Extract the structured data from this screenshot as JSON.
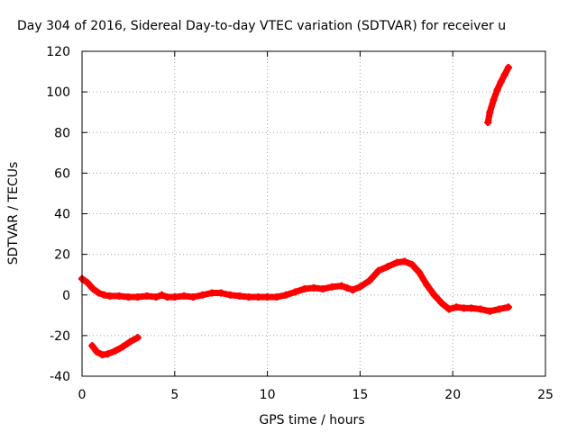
{
  "chart_data": {
    "type": "scatter",
    "title": "Day 304 of 2016, Sidereal Day-to-day VTEC variation (SDTVAR) for receiver u",
    "xlabel": "GPS time / hours",
    "ylabel": "SDTVAR / TECUs",
    "xlim": [
      0,
      25
    ],
    "ylim": [
      -40,
      120
    ],
    "x_ticks": [
      0,
      5,
      10,
      15,
      20,
      25
    ],
    "y_ticks": [
      -40,
      -20,
      0,
      20,
      40,
      60,
      80,
      100,
      120
    ],
    "grid": true,
    "legend": "none",
    "series_color": "#ff0000",
    "series": [
      {
        "x": [
          0.0,
          0.3,
          0.6,
          0.9,
          1.2,
          1.5,
          2.0,
          2.5,
          3.0,
          3.5,
          4.0,
          4.3,
          4.6,
          5.0,
          5.5,
          6.0,
          6.5,
          7.0,
          7.5,
          8.0,
          8.5,
          9.0,
          9.5,
          10.0,
          10.5,
          11.0,
          11.5,
          12.0,
          12.5,
          13.0,
          13.5,
          14.0,
          14.3,
          14.6,
          15.0,
          15.5,
          16.0,
          16.5,
          17.0,
          17.4,
          17.8,
          18.2,
          18.6,
          19.0,
          19.4,
          19.8,
          20.2,
          20.6,
          21.0,
          21.5,
          22.0,
          22.5,
          23.0
        ],
        "y": [
          8,
          6,
          3,
          1,
          0,
          -0.5,
          -0.5,
          -1,
          -1,
          -0.5,
          -1,
          0,
          -1,
          -1,
          -0.5,
          -1,
          0,
          1,
          1,
          0,
          -0.5,
          -1,
          -1,
          -1,
          -1,
          0,
          1.5,
          3,
          3.5,
          3,
          4,
          4.5,
          3.5,
          2.5,
          4,
          7,
          12,
          14,
          16,
          16.5,
          15,
          11,
          5,
          0,
          -4,
          -7,
          -6,
          -6.5,
          -6.5,
          -7,
          -8,
          -7,
          -6
        ]
      },
      {
        "x": [
          0.55,
          0.8,
          1.1,
          1.4,
          1.8,
          2.2,
          2.6,
          3.0
        ],
        "y": [
          -25,
          -28,
          -29.5,
          -29,
          -27.5,
          -25.5,
          -23,
          -21
        ]
      },
      {
        "x": [
          21.9,
          22.0,
          22.2,
          22.4,
          22.6,
          22.8,
          23.0
        ],
        "y": [
          85,
          90,
          96,
          101,
          105,
          108.5,
          112
        ]
      }
    ]
  }
}
